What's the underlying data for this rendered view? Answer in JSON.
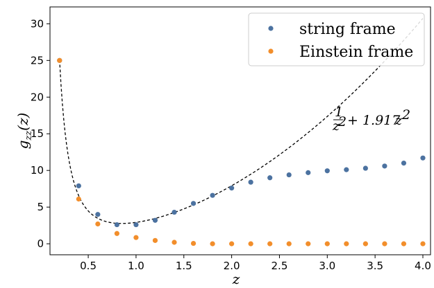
{
  "chart_data": {
    "type": "scatter",
    "xlabel": "z",
    "ylabel": "g_zz(z)",
    "xlim": [
      0.1,
      4.08
    ],
    "ylim": [
      -1.5,
      32.3
    ],
    "xticks": [
      0.5,
      1.0,
      1.5,
      2.0,
      2.5,
      3.0,
      3.5,
      4.0
    ],
    "xtick_labels": [
      "0.5",
      "1.0",
      "1.5",
      "2.0",
      "2.5",
      "3.0",
      "3.5",
      "4.0"
    ],
    "yticks": [
      0,
      5,
      10,
      15,
      20,
      25,
      30
    ],
    "ytick_labels": [
      "0",
      "5",
      "10",
      "15",
      "20",
      "25",
      "30"
    ],
    "legend_position": "top-right",
    "series": [
      {
        "name": "string frame",
        "color": "#4c72a0",
        "x": [
          0.2,
          0.4,
          0.6,
          0.8,
          1.0,
          1.2,
          1.4,
          1.6,
          1.8,
          2.0,
          2.2,
          2.4,
          2.6,
          2.8,
          3.0,
          3.2,
          3.4,
          3.6,
          3.8,
          4.0
        ],
        "y": [
          25.0,
          7.9,
          4.0,
          2.6,
          2.6,
          3.2,
          4.3,
          5.5,
          6.6,
          7.6,
          8.4,
          9.0,
          9.4,
          9.7,
          9.95,
          10.1,
          10.3,
          10.6,
          11.0,
          11.7
        ]
      },
      {
        "name": "Einstein frame",
        "color": "#f28e2b",
        "x": [
          0.2,
          0.4,
          0.6,
          0.8,
          1.0,
          1.2,
          1.4,
          1.6,
          1.8,
          2.0,
          2.2,
          2.4,
          2.6,
          2.8,
          3.0,
          3.2,
          3.4,
          3.6,
          3.8,
          4.0
        ],
        "y": [
          25.0,
          6.1,
          2.7,
          1.4,
          0.85,
          0.45,
          0.2,
          0.05,
          0.0,
          0.0,
          0.0,
          0.0,
          0.0,
          0.0,
          0.0,
          0.0,
          0.0,
          0.0,
          0.0,
          0.0
        ]
      }
    ],
    "curve": {
      "label": "1/z² + 1.917z²",
      "coefficient": 1.917,
      "color": "#000000",
      "style": "dashed",
      "x_range": [
        0.2,
        4.0
      ]
    }
  }
}
